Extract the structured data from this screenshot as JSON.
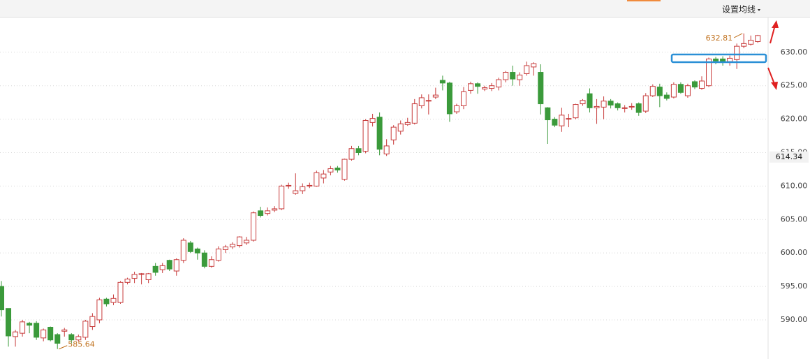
{
  "toolbar_button": "设置均线",
  "chart_data": {
    "type": "candlestick",
    "up_color": "#c83c3c",
    "down_color": "#3b9a3b",
    "ylim": [
      584.15,
      635.2
    ],
    "yticks": [
      {
        "value": 590,
        "label": "590.00"
      },
      {
        "value": 595,
        "label": "595.00"
      },
      {
        "value": 600,
        "label": "600.00"
      },
      {
        "value": 605,
        "label": "605.00"
      },
      {
        "value": 610,
        "label": "610.00"
      },
      {
        "value": 615,
        "label": "615.00"
      },
      {
        "value": 620,
        "label": "620.00"
      },
      {
        "value": 625,
        "label": "625.00"
      },
      {
        "value": 630,
        "label": "630.00"
      }
    ],
    "grid": true,
    "price_marker": 614.34,
    "open": [
      595.0,
      591.7,
      587.5,
      588.0,
      589.5,
      589.5,
      587.3,
      588.9,
      587.8,
      588.3,
      587.8,
      587.0,
      587.4,
      589.0,
      590.0,
      593.1,
      592.6,
      592.6,
      595.6,
      596.2,
      596.8,
      596.0,
      598.0,
      597.5,
      598.9,
      597.3,
      598.9,
      601.5,
      600.6,
      600.0,
      598.0,
      598.9,
      600.5,
      600.9,
      601.1,
      601.5,
      601.9,
      606.3,
      605.9,
      606.4,
      606.6,
      610.0,
      608.9,
      609.3,
      610.0,
      610.0,
      611.2,
      612.1,
      612.7,
      611.0,
      614.0,
      615.6,
      615.2,
      619.5,
      620.3,
      614.8,
      616.9,
      618.2,
      619.2,
      619.4,
      622.0,
      622.7,
      623.3,
      625.8,
      625.4,
      621.1,
      622.0,
      624.3,
      625.3,
      624.5,
      624.6,
      624.8,
      625.9,
      627.0,
      625.9,
      626.8,
      627.8,
      627.0,
      621.7,
      620.0,
      619.0,
      620.1,
      620.2,
      622.3,
      623.8,
      621.7,
      621.8,
      622.7,
      622.3,
      621.6,
      621.8,
      622.3,
      621.2,
      623.5,
      624.8,
      623.6,
      623.3,
      625.2,
      623.5,
      625.6,
      624.6,
      625.0,
      629.0,
      629.0,
      628.6,
      628.9,
      630.9,
      631.2,
      631.6
    ],
    "high": [
      595.8,
      591.7,
      588.5,
      590.0,
      589.7,
      589.8,
      588.7,
      589.0,
      588.0,
      588.8,
      588.0,
      587.8,
      590.0,
      591.0,
      593.3,
      593.3,
      593.8,
      595.8,
      596.3,
      597.2,
      597.0,
      597.0,
      598.5,
      598.5,
      599.0,
      599.2,
      602.2,
      601.8,
      600.8,
      600.4,
      599.5,
      601.0,
      601.2,
      601.6,
      602.5,
      602.4,
      606.2,
      606.9,
      606.8,
      607.0,
      610.2,
      610.5,
      611.9,
      610.4,
      610.5,
      612.3,
      612.4,
      613.0,
      613.0,
      614.1,
      616.0,
      616.0,
      620.0,
      620.8,
      621.0,
      617.0,
      619.1,
      619.8,
      620.2,
      623.0,
      623.7,
      623.7,
      624.7,
      626.5,
      625.6,
      622.3,
      624.8,
      625.6,
      625.5,
      625.0,
      625.4,
      626.2,
      627.2,
      628.0,
      627.0,
      628.6,
      628.5,
      628.2,
      621.8,
      620.3,
      621.7,
      620.8,
      622.3,
      623.0,
      624.6,
      623.0,
      623.4,
      623.0,
      622.5,
      622.1,
      622.4,
      622.5,
      623.9,
      625.2,
      625.3,
      624.0,
      625.5,
      625.5,
      625.3,
      625.8,
      626.4,
      629.2,
      629.3,
      629.4,
      629.5,
      631.3,
      632.81,
      632.5,
      632.6
    ],
    "low": [
      590.5,
      586.0,
      586.0,
      587.5,
      588.0,
      587.0,
      586.8,
      586.8,
      585.64,
      587.5,
      586.5,
      586.8,
      587.0,
      588.5,
      589.5,
      592.0,
      592.2,
      592.4,
      595.3,
      595.5,
      595.3,
      595.5,
      596.6,
      597.0,
      597.3,
      596.6,
      598.5,
      600.0,
      599.0,
      597.7,
      597.8,
      598.7,
      600.0,
      600.6,
      600.8,
      601.2,
      601.7,
      605.3,
      605.6,
      606.1,
      606.4,
      609.6,
      608.7,
      608.8,
      609.7,
      609.9,
      610.4,
      611.6,
      612.0,
      610.8,
      613.8,
      614.6,
      614.9,
      618.9,
      614.6,
      614.5,
      616.2,
      617.7,
      619.0,
      619.2,
      621.6,
      620.7,
      623.0,
      624.3,
      619.6,
      620.8,
      621.5,
      623.8,
      623.8,
      624.2,
      624.2,
      624.3,
      625.5,
      625.0,
      625.0,
      626.5,
      626.5,
      620.7,
      616.3,
      618.8,
      618.1,
      618.8,
      620.0,
      622.0,
      621.0,
      619.3,
      620.0,
      621.6,
      621.3,
      621.0,
      621.4,
      620.5,
      620.9,
      623.3,
      621.8,
      622.8,
      623.1,
      623.8,
      623.2,
      624.5,
      624.4,
      624.8,
      628.2,
      628.0,
      628.0,
      627.5,
      630.6,
      631.0,
      631.4
    ],
    "close": [
      591.5,
      587.6,
      588.2,
      589.7,
      589.2,
      587.4,
      588.5,
      587.0,
      586.5,
      588.5,
      587.0,
      587.5,
      589.8,
      590.5,
      593.0,
      592.4,
      593.2,
      595.6,
      596.1,
      596.8,
      596.9,
      596.9,
      597.1,
      598.1,
      597.6,
      599.0,
      601.9,
      600.2,
      600.0,
      598.0,
      599.0,
      600.6,
      600.9,
      601.3,
      602.4,
      601.9,
      606.0,
      605.6,
      606.3,
      606.6,
      610.0,
      610.1,
      609.3,
      609.9,
      610.1,
      612.0,
      611.8,
      612.6,
      612.4,
      614.0,
      615.6,
      615.0,
      619.8,
      620.1,
      615.5,
      616.0,
      618.8,
      619.3,
      619.5,
      622.3,
      623.2,
      622.8,
      623.6,
      625.4,
      620.8,
      622.0,
      624.1,
      625.3,
      624.9,
      624.7,
      625.0,
      625.9,
      627.0,
      626.0,
      626.6,
      628.0,
      628.3,
      622.3,
      619.9,
      619.1,
      620.6,
      620.1,
      622.2,
      622.8,
      621.7,
      621.9,
      622.7,
      622.1,
      621.7,
      621.7,
      621.9,
      621.0,
      623.5,
      624.9,
      623.5,
      623.1,
      625.2,
      624.0,
      625.0,
      624.8,
      625.7,
      629.0,
      628.7,
      628.6,
      629.1,
      630.9,
      631.3,
      631.8,
      632.5
    ]
  }
}
